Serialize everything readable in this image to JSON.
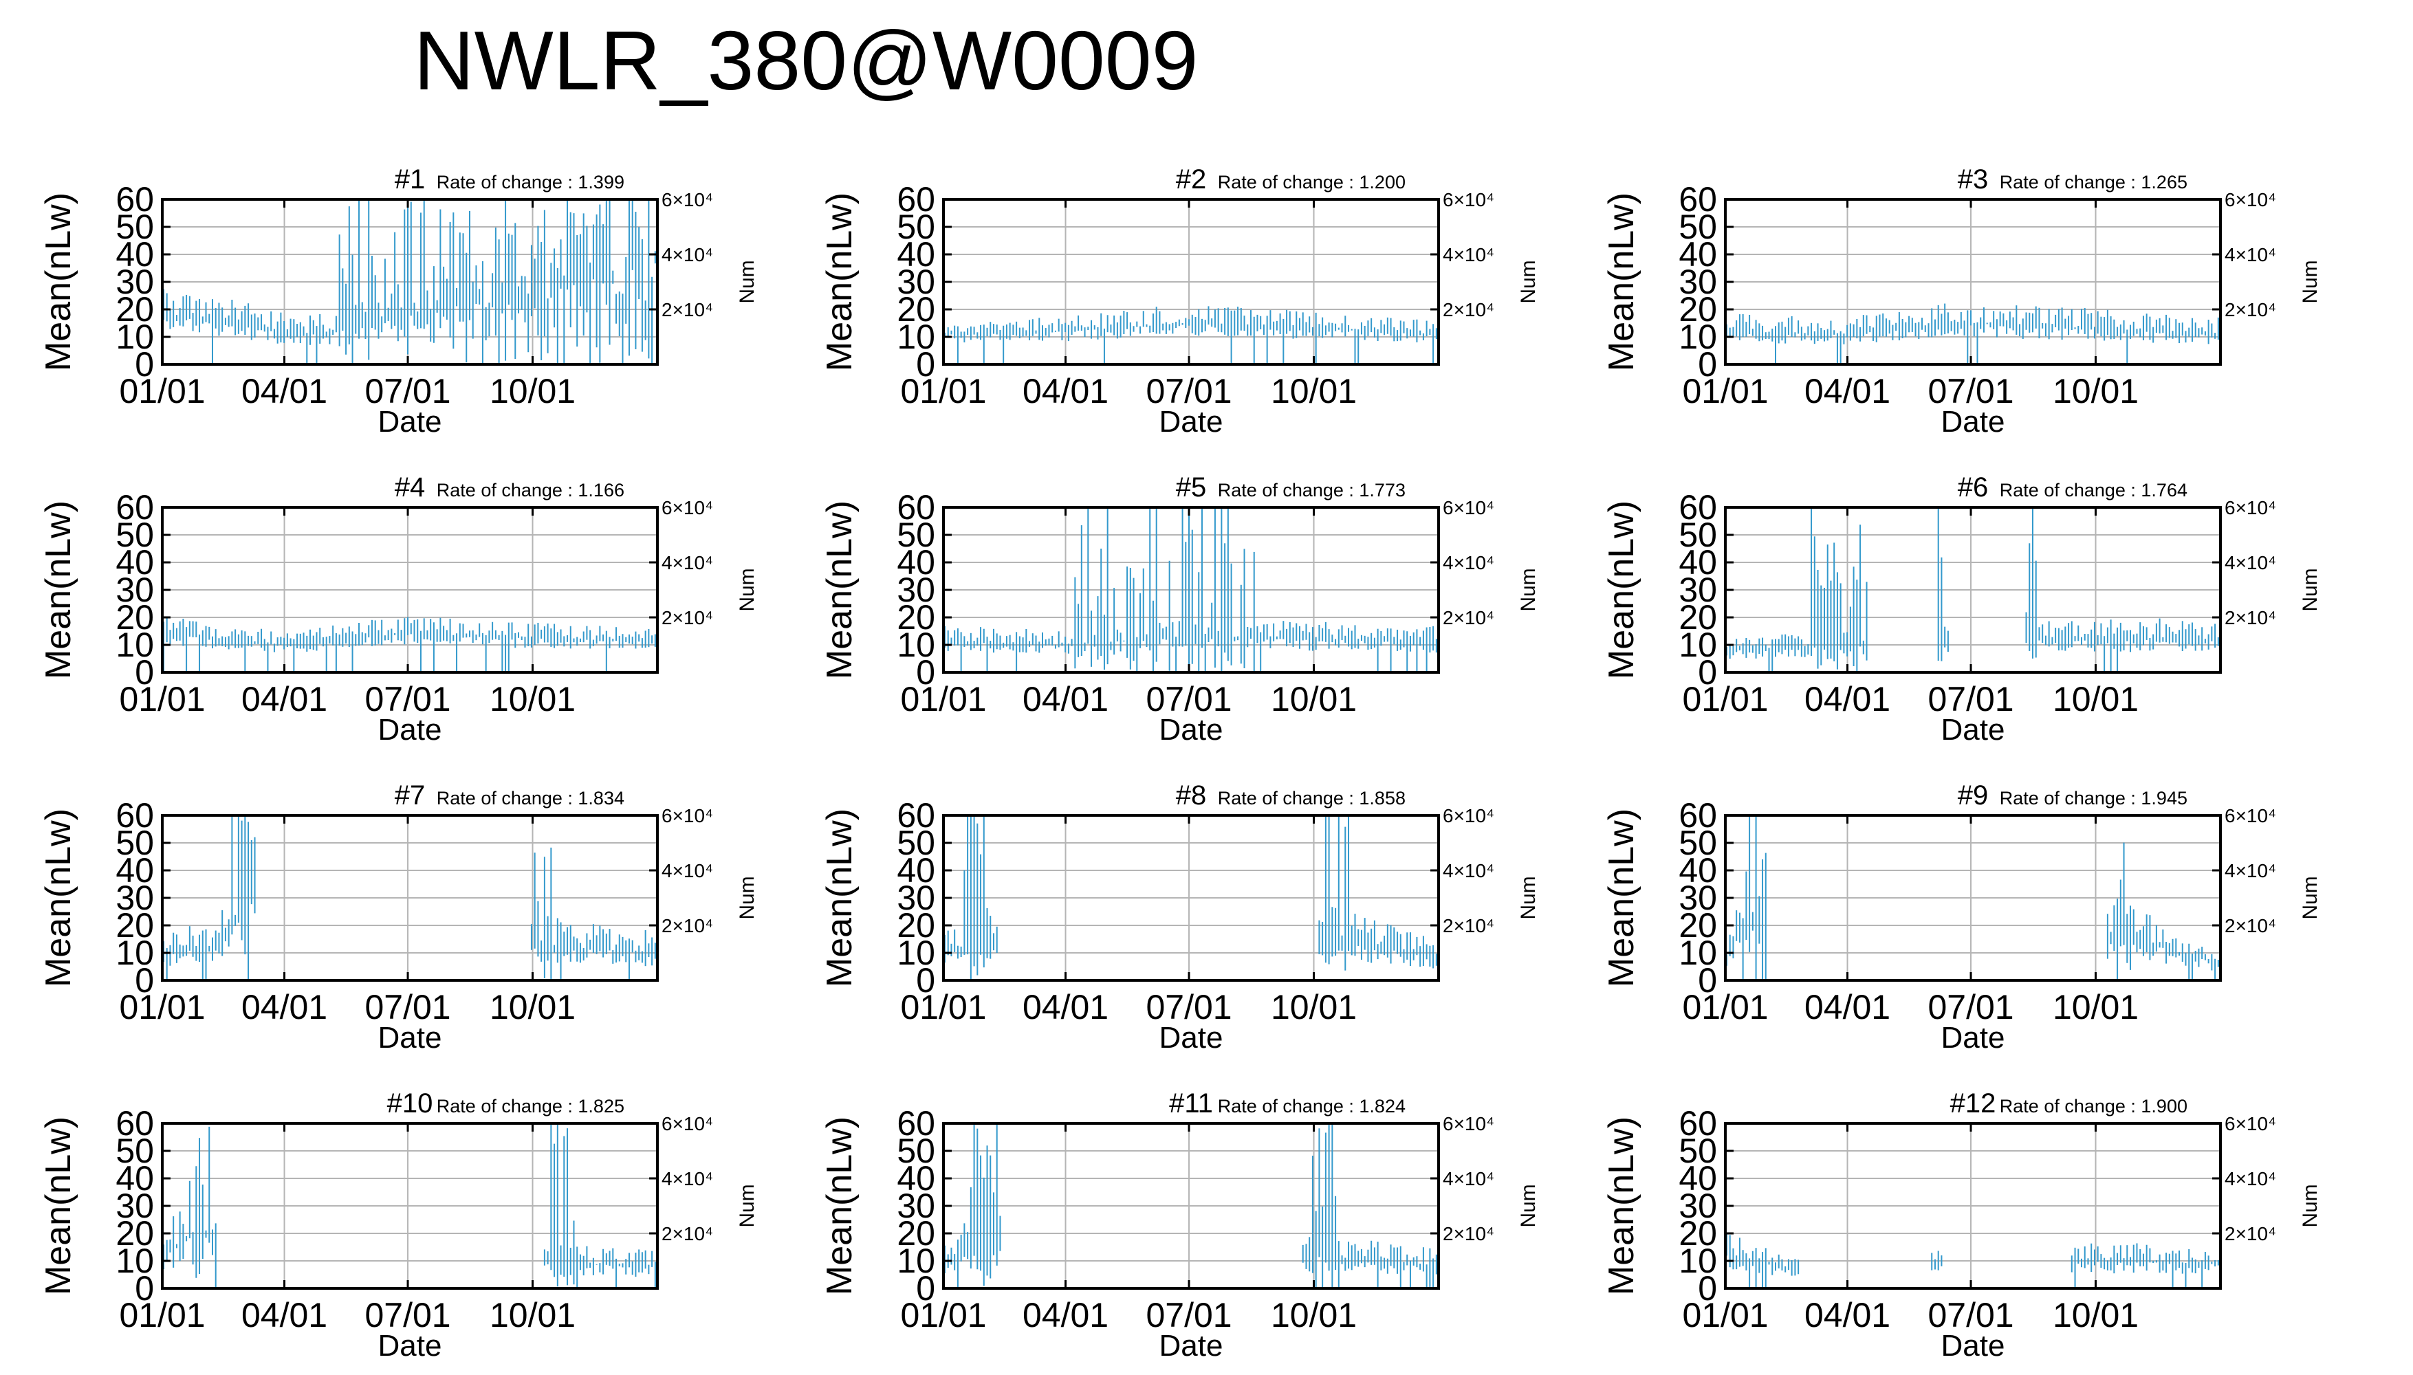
{
  "title": "NWLR_380@W0009",
  "chart_data": {
    "type": "line",
    "title": "NWLR_380@W0009",
    "xlabel": "Date",
    "ylabel": "Mean(nLw)",
    "y2label": "Num",
    "x_ticks": [
      "01/01",
      "04/01",
      "07/01",
      "10/01"
    ],
    "y_ticks": [
      0,
      10,
      20,
      30,
      40,
      50,
      60
    ],
    "ylim": [
      0,
      60
    ],
    "y2_ticks": [
      "2×10⁴",
      "4×10⁴",
      "6×10⁴"
    ],
    "y2_tick_values": [
      20000,
      40000,
      60000
    ],
    "y2lim": [
      0,
      60000
    ],
    "x_range_days": [
      0,
      365
    ],
    "grid": true,
    "series_color": "#3399cc",
    "rate_label": "Rate of change : ",
    "panels": [
      {
        "name": "#1",
        "rate": "1.399",
        "profile": [
          [
            0,
            18
          ],
          [
            100,
            11
          ],
          [
            130,
            12
          ],
          [
            365,
            38
          ]
        ],
        "spread": 0.4,
        "spike_ranges": [
          [
            130,
            365,
            0.85
          ]
        ]
      },
      {
        "name": "#2",
        "rate": "1.200",
        "profile": [
          [
            0,
            11
          ],
          [
            90,
            12
          ],
          [
            180,
            15
          ],
          [
            365,
            11
          ]
        ],
        "spread": 0.3,
        "spike_ranges": []
      },
      {
        "name": "#3",
        "rate": "1.265",
        "profile": [
          [
            0,
            12
          ],
          [
            90,
            11
          ],
          [
            180,
            15
          ],
          [
            365,
            11
          ]
        ],
        "spread": 0.35,
        "spike_ranges": []
      },
      {
        "name": "#4",
        "rate": "1.166",
        "profile": [
          [
            0,
            14
          ],
          [
            90,
            10
          ],
          [
            180,
            14
          ],
          [
            365,
            11
          ]
        ],
        "spread": 0.3,
        "spike_ranges": []
      },
      {
        "name": "#5",
        "rate": "1.773",
        "profile": [
          [
            0,
            11
          ],
          [
            90,
            10
          ],
          [
            180,
            13
          ],
          [
            365,
            11
          ]
        ],
        "spread": 0.35,
        "spike_ranges": [
          [
            95,
            230,
            0.45
          ]
        ]
      },
      {
        "name": "#6",
        "rate": "1.764",
        "profile": [
          [
            0,
            8
          ],
          [
            60,
            9
          ],
          [
            250,
            12
          ],
          [
            365,
            12
          ]
        ],
        "spread": 0.4,
        "spike_ranges": [
          [
            60,
            105,
            0.7
          ],
          [
            155,
            230,
            0.5
          ]
        ],
        "gaps": [
          [
            105,
            155
          ],
          [
            165,
            220
          ]
        ]
      },
      {
        "name": "#7",
        "rate": "1.834",
        "profile": [
          [
            0,
            10
          ],
          [
            40,
            12
          ],
          [
            60,
            30
          ],
          [
            300,
            12
          ],
          [
            365,
            10
          ]
        ],
        "spread": 0.5,
        "spike_ranges": [
          [
            50,
            65,
            0.8
          ],
          [
            270,
            290,
            0.8
          ]
        ],
        "gaps": [
          [
            70,
            270
          ]
        ]
      },
      {
        "name": "#8",
        "rate": "1.858",
        "profile": [
          [
            0,
            10
          ],
          [
            20,
            12
          ],
          [
            290,
            15
          ],
          [
            365,
            8
          ]
        ],
        "spread": 0.5,
        "spike_ranges": [
          [
            15,
            35,
            0.9
          ],
          [
            280,
            300,
            0.7
          ]
        ],
        "gaps": [
          [
            40,
            275
          ]
        ]
      },
      {
        "name": "#9",
        "rate": "1.945",
        "profile": [
          [
            0,
            8
          ],
          [
            15,
            20
          ],
          [
            300,
            15
          ],
          [
            365,
            6
          ]
        ],
        "spread": 0.5,
        "spike_ranges": [
          [
            10,
            30,
            0.8
          ],
          [
            285,
            300,
            0.8
          ]
        ],
        "gaps": [
          [
            32,
            280
          ]
        ]
      },
      {
        "name": "#10",
        "rate": "1.825",
        "profile": [
          [
            0,
            12
          ],
          [
            25,
            20
          ],
          [
            300,
            9
          ],
          [
            365,
            8
          ]
        ],
        "spread": 0.5,
        "spike_ranges": [
          [
            10,
            35,
            0.7
          ],
          [
            285,
            305,
            0.7
          ]
        ],
        "gaps": [
          [
            40,
            280
          ]
        ]
      },
      {
        "name": "#11",
        "rate": "1.824",
        "profile": [
          [
            0,
            10
          ],
          [
            20,
            15
          ],
          [
            270,
            12
          ],
          [
            365,
            8
          ]
        ],
        "spread": 0.5,
        "spike_ranges": [
          [
            20,
            40,
            0.9
          ],
          [
            270,
            290,
            0.8
          ]
        ],
        "gaps": [
          [
            42,
            265
          ]
        ]
      },
      {
        "name": "#12",
        "rate": "1.900",
        "profile": [
          [
            0,
            12
          ],
          [
            60,
            6
          ],
          [
            250,
            10
          ],
          [
            365,
            9
          ]
        ],
        "spread": 0.45,
        "spike_ranges": [
          [
            60,
            250,
            0.3
          ]
        ],
        "gaps": [
          [
            55,
            150
          ],
          [
            160,
            255
          ]
        ]
      }
    ]
  }
}
